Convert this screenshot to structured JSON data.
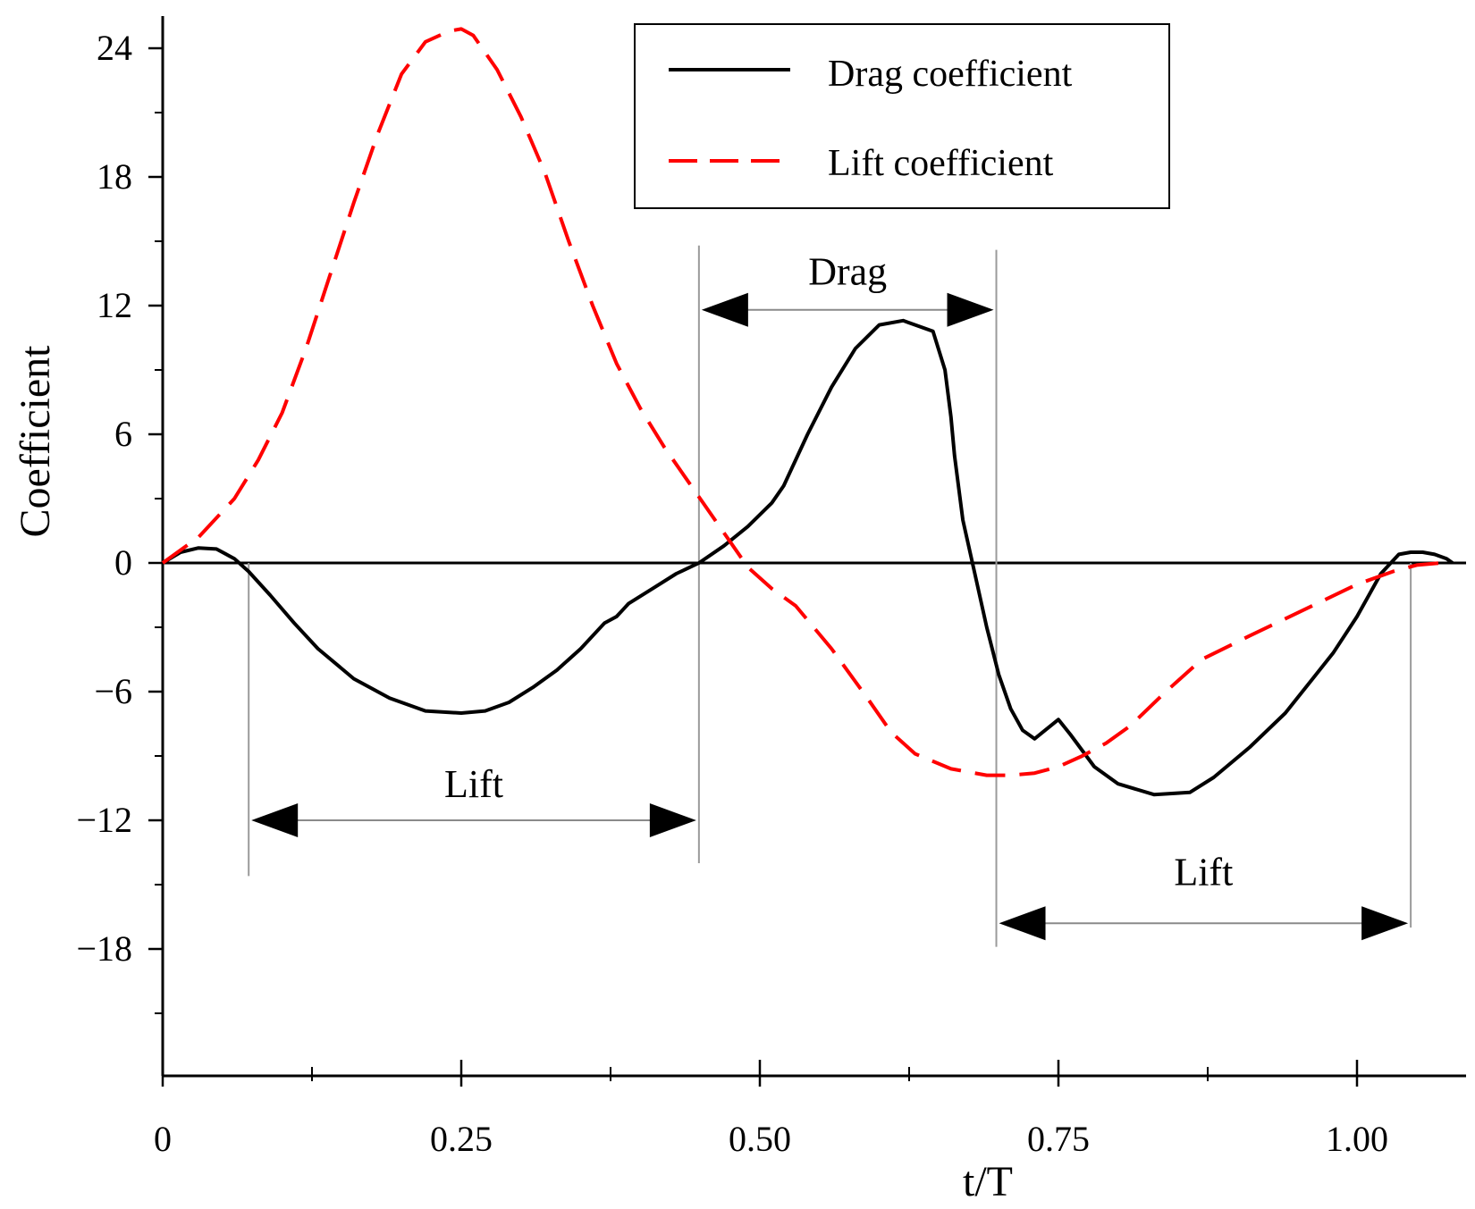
{
  "chart_data": {
    "type": "line",
    "title": "",
    "xlabel": "t/T",
    "ylabel": "Coefficient",
    "xlim": [
      0,
      1.09
    ],
    "ylim": [
      -24,
      25.5
    ],
    "x_ticks": [
      0,
      0.25,
      0.5,
      0.75,
      1.0
    ],
    "x_tick_labels": [
      "0",
      "0.25",
      "0.50",
      "0.75",
      "1.00"
    ],
    "y_ticks": [
      24,
      18,
      12,
      6,
      0,
      -6,
      -12,
      -18
    ],
    "y_tick_labels": [
      "24",
      "18",
      "12",
      "6",
      "0",
      "−6",
      "−12",
      "−18"
    ],
    "legend_position": "top-right",
    "colors": {
      "drag": "#000000",
      "lift": "#ff0000"
    },
    "series": [
      {
        "name": "Drag coefficient",
        "style": "solid",
        "x": [
          0,
          0.015,
          0.03,
          0.045,
          0.06,
          0.072,
          0.09,
          0.11,
          0.13,
          0.16,
          0.19,
          0.22,
          0.25,
          0.27,
          0.29,
          0.31,
          0.33,
          0.35,
          0.37,
          0.38,
          0.385,
          0.39,
          0.41,
          0.43,
          0.449,
          0.47,
          0.49,
          0.51,
          0.52,
          0.54,
          0.56,
          0.58,
          0.6,
          0.62,
          0.645,
          0.655,
          0.66,
          0.663,
          0.67,
          0.68,
          0.69,
          0.7,
          0.71,
          0.72,
          0.73,
          0.75,
          0.76,
          0.78,
          0.8,
          0.83,
          0.86,
          0.88,
          0.91,
          0.94,
          0.96,
          0.98,
          1.0,
          1.02,
          1.035,
          1.045,
          1.055,
          1.065,
          1.075,
          1.08
        ],
        "y": [
          0,
          0.5,
          0.7,
          0.65,
          0.2,
          -0.4,
          -1.5,
          -2.8,
          -4.0,
          -5.4,
          -6.3,
          -6.9,
          -7.0,
          -6.9,
          -6.5,
          -5.8,
          -5.0,
          -4.0,
          -2.8,
          -2.5,
          -2.2,
          -1.9,
          -1.2,
          -0.5,
          0,
          0.8,
          1.7,
          2.8,
          3.6,
          6.0,
          8.2,
          10.0,
          11.1,
          11.3,
          10.8,
          9.0,
          6.8,
          5.0,
          2.0,
          -0.5,
          -3.0,
          -5.2,
          -6.8,
          -7.8,
          -8.2,
          -7.3,
          -8.0,
          -9.5,
          -10.3,
          -10.8,
          -10.7,
          -10.0,
          -8.6,
          -7.0,
          -5.6,
          -4.2,
          -2.5,
          -0.5,
          0.4,
          0.5,
          0.5,
          0.4,
          0.2,
          0.0
        ]
      },
      {
        "name": "Lift coefficient",
        "style": "dashed",
        "x": [
          0,
          0.03,
          0.06,
          0.08,
          0.1,
          0.12,
          0.14,
          0.16,
          0.18,
          0.2,
          0.22,
          0.24,
          0.25,
          0.26,
          0.28,
          0.3,
          0.32,
          0.34,
          0.36,
          0.38,
          0.4,
          0.42,
          0.44,
          0.45,
          0.47,
          0.49,
          0.51,
          0.53,
          0.56,
          0.59,
          0.61,
          0.63,
          0.66,
          0.69,
          0.71,
          0.73,
          0.75,
          0.77,
          0.79,
          0.81,
          0.84,
          0.87,
          0.91,
          0.94,
          0.97,
          1.0,
          1.03,
          1.05,
          1.07
        ],
        "y": [
          0,
          1.2,
          3.0,
          4.8,
          7.0,
          10.0,
          13.4,
          16.8,
          20.0,
          22.8,
          24.3,
          24.8,
          24.9,
          24.6,
          23.0,
          20.8,
          18.2,
          15.0,
          12.0,
          9.3,
          7.2,
          5.4,
          3.8,
          3.0,
          1.4,
          -0.2,
          -1.2,
          -2.0,
          -4.0,
          -6.3,
          -7.9,
          -8.9,
          -9.6,
          -9.9,
          -9.9,
          -9.8,
          -9.5,
          -9.0,
          -8.4,
          -7.6,
          -6.0,
          -4.5,
          -3.4,
          -2.6,
          -1.8,
          -1.0,
          -0.4,
          -0.1,
          0
        ]
      }
    ],
    "annotations": [
      {
        "label": "Lift",
        "x_start": 0.072,
        "x_end": 0.449,
        "y": -12.0,
        "label_y": -10.3
      },
      {
        "label": "Drag",
        "x_start": 0.449,
        "x_end": 0.698,
        "y": 11.8,
        "label_y": 13.6
      },
      {
        "label": "Lift",
        "x_start": 0.698,
        "x_end": 1.045,
        "y": -16.8,
        "label_y": -14.4
      }
    ],
    "dividers": [
      {
        "x": 0.072,
        "y_top": 0,
        "y_bottom": -14.6
      },
      {
        "x": 0.449,
        "y_top": 14.8,
        "y_bottom": -14.0
      },
      {
        "x": 0.698,
        "y_top": 14.6,
        "y_bottom": -17.9
      },
      {
        "x": 1.045,
        "y_top": 0,
        "y_bottom": -17.0
      }
    ]
  }
}
